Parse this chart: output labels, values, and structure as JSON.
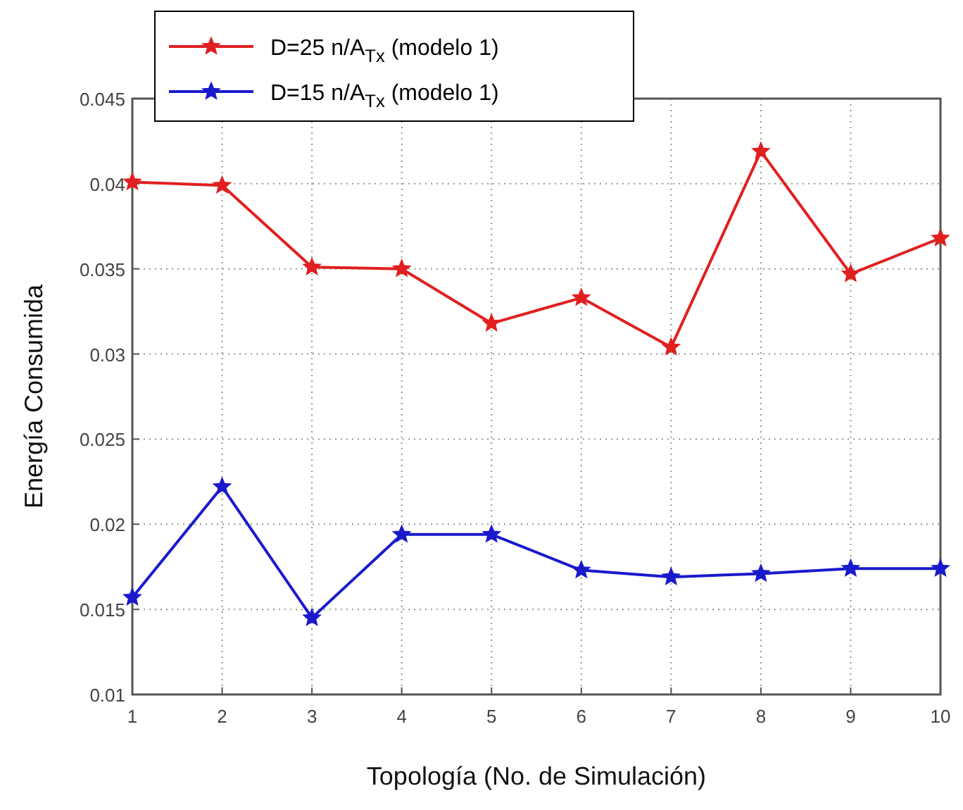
{
  "chart_data": {
    "type": "line",
    "xlabel": "Topología (No. de Simulación)",
    "ylabel": "Energía Consumida",
    "x": [
      1,
      2,
      3,
      4,
      5,
      6,
      7,
      8,
      9,
      10
    ],
    "series": [
      {
        "name": "D=25 n/A$_{Tx}$  (modelo 1)",
        "color": "#e02020",
        "values": [
          0.0401,
          0.0399,
          0.0351,
          0.035,
          0.0318,
          0.0333,
          0.0304,
          0.0419,
          0.0347,
          0.0368
        ]
      },
      {
        "name": "D=15 n/A$_{Tx}$  (modelo 1)",
        "color": "#1a1acc",
        "values": [
          0.0157,
          0.0222,
          0.0145,
          0.0194,
          0.0194,
          0.0173,
          0.0169,
          0.0171,
          0.0174,
          0.0174
        ]
      }
    ],
    "xlim": [
      1,
      10
    ],
    "xticks": [
      1,
      2,
      3,
      4,
      5,
      6,
      7,
      8,
      9,
      10
    ],
    "ylim": [
      0.01,
      0.045
    ],
    "yticks": [
      0.01,
      0.015,
      0.02,
      0.025,
      0.03,
      0.035,
      0.04,
      0.045
    ],
    "grid": true,
    "legend": "top left",
    "marker": "star",
    "line_style": "solid"
  }
}
